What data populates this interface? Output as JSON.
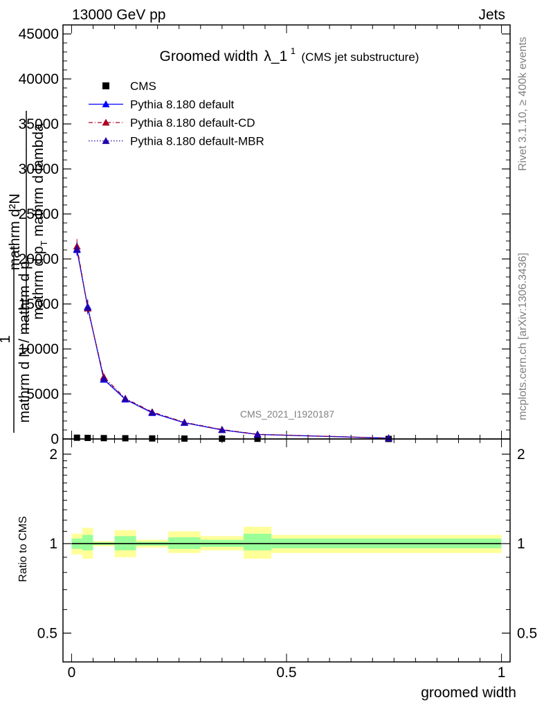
{
  "header": {
    "left": "13000 GeV pp",
    "right": "Jets"
  },
  "side_labels": {
    "rivet": "Rivet 3.1.10, ≥ 400k events",
    "mcplots": "mcplots.cern.ch [arXiv:1306.3436]"
  },
  "chart_data": [
    {
      "type": "scatter",
      "title_main": "Groomed width",
      "title_lambda": "λ_1",
      "title_sup": "1",
      "title_sub": "(CMS jet substructure)",
      "ylabel_numerator": "mathrm d²N",
      "ylabel_den_part1": "mathrm d p",
      "ylabel_den_sub1": "T",
      "ylabel_den_part2": " mathrm d lambda",
      "ylabel_prefix_num": "1",
      "ylabel_prefix_den": "mathrm d N / mathrm d p",
      "ylabel_prefix_sub": "T",
      "analysis_label": "CMS_2021_I1920187",
      "ylim": [
        0,
        46000
      ],
      "y_ticks": [
        0,
        5000,
        10000,
        15000,
        20000,
        25000,
        30000,
        35000,
        40000,
        45000
      ],
      "y_tick_labels": [
        "0",
        "5000",
        "10000",
        "15000",
        "20000",
        "25000",
        "30000",
        "35000",
        "40000",
        "45000"
      ],
      "xlim": [
        -0.02,
        1.02
      ],
      "x": [
        0.0125,
        0.0375,
        0.075,
        0.125,
        0.1875,
        0.2625,
        0.35,
        0.4325,
        0.7375
      ],
      "bin_edges": [
        0.0,
        0.025,
        0.05,
        0.1,
        0.15,
        0.225,
        0.3,
        0.4,
        0.465,
        1.0
      ],
      "legend": [
        {
          "label": "CMS",
          "color": "#000000",
          "marker": "square",
          "line": "none"
        },
        {
          "label": "Pythia 8.180 default",
          "color": "#0000ff",
          "marker": "triangle",
          "line": "solid"
        },
        {
          "label": "Pythia 8.180 default-CD",
          "color": "#aa0022",
          "marker": "triangle",
          "line": "dashdot"
        },
        {
          "label": "Pythia 8.180 default-MBR",
          "color": "#2200aa",
          "marker": "triangle",
          "line": "dotted"
        }
      ],
      "series": [
        {
          "name": "CMS",
          "values": [
            140,
            120,
            95,
            80,
            60,
            45,
            30,
            20,
            4
          ]
        },
        {
          "name": "Pythia 8.180 default",
          "values": [
            21000,
            14700,
            6600,
            4400,
            2900,
            1800,
            1000,
            500,
            90
          ]
        },
        {
          "name": "Pythia 8.180 default-CD",
          "values": [
            21400,
            14500,
            6900,
            4500,
            3000,
            1850,
            1050,
            520,
            95
          ]
        },
        {
          "name": "Pythia 8.180 default-MBR",
          "values": [
            21100,
            14600,
            6700,
            4450,
            2950,
            1820,
            1020,
            510,
            92
          ]
        }
      ]
    },
    {
      "type": "scatter",
      "ylabel": "Ratio to CMS",
      "xlabel": "groomed width",
      "ylim": [
        0.4,
        2.25
      ],
      "y_scale": "log",
      "y_ticks": [
        0.5,
        1,
        2
      ],
      "y_tick_labels": [
        "0.5",
        "1",
        "2"
      ],
      "xlim": [
        -0.02,
        1.02
      ],
      "x_ticks": [
        0,
        0.5,
        1
      ],
      "x_tick_labels": [
        "0",
        "0.5",
        "1"
      ],
      "bin_edges": [
        0.0,
        0.025,
        0.05,
        0.1,
        0.15,
        0.225,
        0.3,
        0.4,
        0.465,
        1.0
      ],
      "band_total": [
        [
          0.92,
          1.08
        ],
        [
          0.89,
          1.13
        ],
        [
          0.98,
          1.02
        ],
        [
          0.9,
          1.11
        ],
        [
          0.97,
          1.03
        ],
        [
          0.93,
          1.1
        ],
        [
          0.95,
          1.06
        ],
        [
          0.89,
          1.14
        ],
        [
          0.93,
          1.07
        ]
      ],
      "band_stat": [
        [
          0.96,
          1.04
        ],
        [
          0.95,
          1.07
        ],
        [
          0.99,
          1.01
        ],
        [
          0.95,
          1.06
        ],
        [
          0.985,
          1.015
        ],
        [
          0.96,
          1.05
        ],
        [
          0.975,
          1.03
        ],
        [
          0.95,
          1.08
        ],
        [
          0.965,
          1.04
        ]
      ],
      "band_total_color": "#ffff99",
      "band_stat_color": "#99ff99",
      "reference_value": 1
    }
  ]
}
